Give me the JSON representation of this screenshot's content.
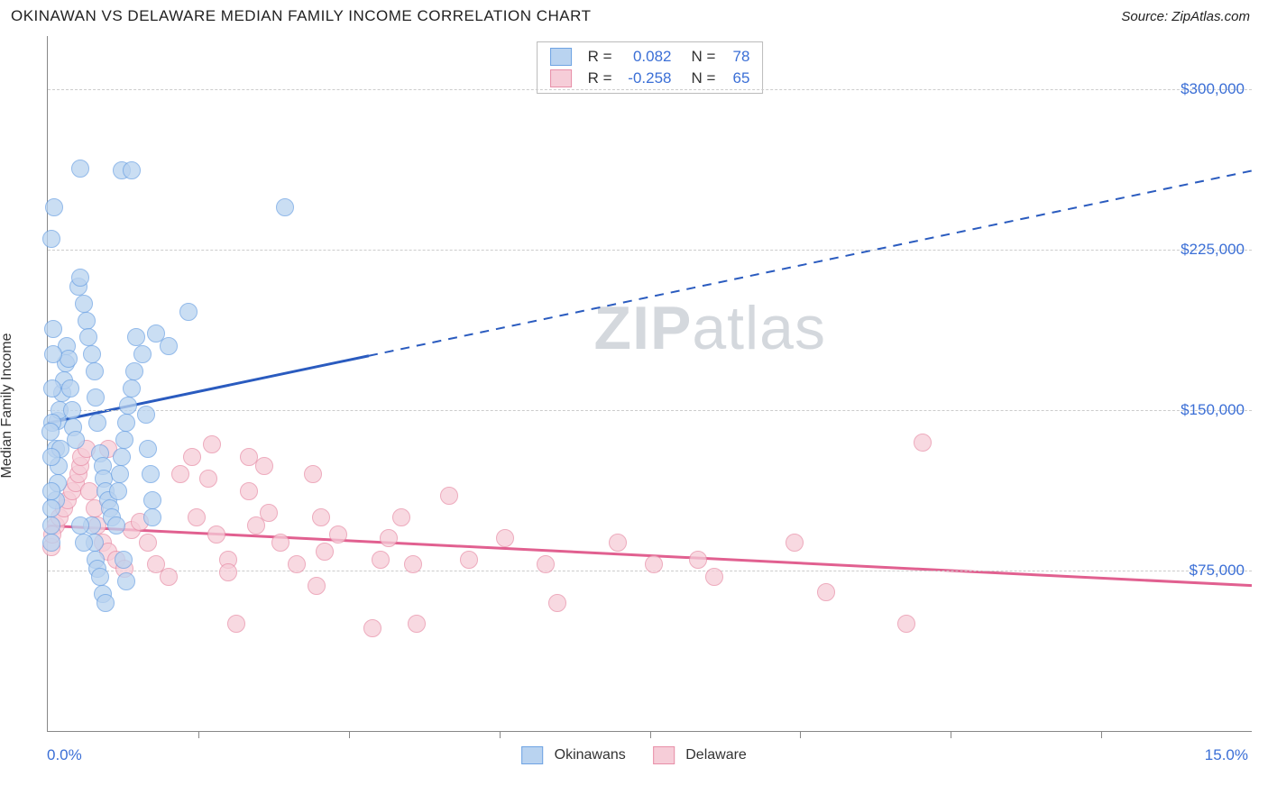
{
  "header": {
    "title": "OKINAWAN VS DELAWARE MEDIAN FAMILY INCOME CORRELATION CHART",
    "source_prefix": "Source: ",
    "source": "ZipAtlas.com"
  },
  "ylabel": "Median Family Income",
  "watermark": {
    "zip": "ZIP",
    "atlas": "atlas"
  },
  "axes": {
    "x_min_label": "0.0%",
    "x_max_label": "15.0%",
    "x_min": 0.0,
    "x_max": 15.0,
    "y_min": 0,
    "y_max": 325000,
    "y_ticks": [
      {
        "value": 75000,
        "label": "$75,000"
      },
      {
        "value": 150000,
        "label": "$150,000"
      },
      {
        "value": 225000,
        "label": "$225,000"
      },
      {
        "value": 300000,
        "label": "$300,000"
      }
    ],
    "x_tick_count": 7,
    "grid_color": "#cccccc",
    "axis_color": "#888888"
  },
  "series": {
    "a": {
      "name": "Okinawans",
      "fill": "#b9d3f0",
      "stroke": "#6ea3e3",
      "line": "#2a5bbf",
      "r_label": "R =",
      "r": "0.082",
      "n_label": "N =",
      "n": "78",
      "trend": {
        "y_at_xmin": 144000,
        "y_at_xmax": 262000,
        "solid_until_x": 4.0
      },
      "points": [
        [
          0.05,
          230000
        ],
        [
          0.08,
          245000
        ],
        [
          0.4,
          263000
        ],
        [
          0.92,
          262000
        ],
        [
          1.05,
          262000
        ],
        [
          2.95,
          245000
        ],
        [
          0.1,
          132000
        ],
        [
          0.12,
          145000
        ],
        [
          0.15,
          150000
        ],
        [
          0.18,
          158000
        ],
        [
          0.2,
          164000
        ],
        [
          0.22,
          172000
        ],
        [
          0.24,
          180000
        ],
        [
          0.26,
          174000
        ],
        [
          0.28,
          160000
        ],
        [
          0.3,
          150000
        ],
        [
          0.32,
          142000
        ],
        [
          0.35,
          136000
        ],
        [
          0.38,
          208000
        ],
        [
          0.4,
          212000
        ],
        [
          0.45,
          200000
        ],
        [
          0.48,
          192000
        ],
        [
          0.5,
          184000
        ],
        [
          0.55,
          176000
        ],
        [
          0.58,
          168000
        ],
        [
          0.6,
          156000
        ],
        [
          0.62,
          144000
        ],
        [
          0.65,
          130000
        ],
        [
          0.68,
          124000
        ],
        [
          0.7,
          118000
        ],
        [
          0.72,
          112000
        ],
        [
          0.75,
          108000
        ],
        [
          0.78,
          104000
        ],
        [
          0.8,
          100000
        ],
        [
          0.85,
          96000
        ],
        [
          0.88,
          112000
        ],
        [
          0.9,
          120000
        ],
        [
          0.92,
          128000
        ],
        [
          0.95,
          136000
        ],
        [
          0.98,
          144000
        ],
        [
          1.0,
          152000
        ],
        [
          1.05,
          160000
        ],
        [
          1.08,
          168000
        ],
        [
          1.1,
          184000
        ],
        [
          1.18,
          176000
        ],
        [
          1.22,
          148000
        ],
        [
          1.25,
          132000
        ],
        [
          1.28,
          120000
        ],
        [
          1.3,
          108000
        ],
        [
          1.3,
          100000
        ],
        [
          1.35,
          186000
        ],
        [
          1.5,
          180000
        ],
        [
          1.75,
          196000
        ],
        [
          0.55,
          96000
        ],
        [
          0.58,
          88000
        ],
        [
          0.6,
          80000
        ],
        [
          0.62,
          76000
        ],
        [
          0.65,
          72000
        ],
        [
          0.68,
          64000
        ],
        [
          0.72,
          60000
        ],
        [
          0.1,
          108000
        ],
        [
          0.12,
          116000
        ],
        [
          0.14,
          124000
        ],
        [
          0.16,
          132000
        ],
        [
          0.05,
          112000
        ],
        [
          0.05,
          128000
        ],
        [
          0.06,
          144000
        ],
        [
          0.06,
          160000
        ],
        [
          0.07,
          176000
        ],
        [
          0.07,
          188000
        ],
        [
          0.05,
          96000
        ],
        [
          0.04,
          88000
        ],
        [
          0.04,
          104000
        ],
        [
          0.03,
          140000
        ],
        [
          0.4,
          96000
        ],
        [
          0.45,
          88000
        ],
        [
          0.94,
          80000
        ],
        [
          0.98,
          70000
        ]
      ]
    },
    "b": {
      "name": "Delaware",
      "fill": "#f6cdd8",
      "stroke": "#e88fa8",
      "line": "#e16090",
      "r_label": "R =",
      "r": "-0.258",
      "n_label": "N =",
      "n": "65",
      "trend": {
        "y_at_xmin": 96000,
        "y_at_xmax": 68000,
        "solid_until_x": 15.0
      },
      "points": [
        [
          0.1,
          96000
        ],
        [
          0.15,
          100000
        ],
        [
          0.2,
          104000
        ],
        [
          0.25,
          108000
        ],
        [
          0.3,
          112000
        ],
        [
          0.35,
          116000
        ],
        [
          0.38,
          120000
        ],
        [
          0.4,
          124000
        ],
        [
          0.42,
          128000
        ],
        [
          0.48,
          132000
        ],
        [
          0.52,
          112000
        ],
        [
          0.58,
          104000
        ],
        [
          0.62,
          96000
        ],
        [
          0.68,
          88000
        ],
        [
          0.75,
          84000
        ],
        [
          0.85,
          80000
        ],
        [
          0.95,
          76000
        ],
        [
          1.05,
          94000
        ],
        [
          1.15,
          98000
        ],
        [
          1.25,
          88000
        ],
        [
          1.35,
          78000
        ],
        [
          1.5,
          72000
        ],
        [
          1.65,
          120000
        ],
        [
          1.8,
          128000
        ],
        [
          1.85,
          100000
        ],
        [
          2.0,
          118000
        ],
        [
          2.1,
          92000
        ],
        [
          2.25,
          80000
        ],
        [
          2.25,
          74000
        ],
        [
          2.35,
          50000
        ],
        [
          2.5,
          128000
        ],
        [
          2.5,
          112000
        ],
        [
          2.6,
          96000
        ],
        [
          2.7,
          124000
        ],
        [
          2.75,
          102000
        ],
        [
          2.9,
          88000
        ],
        [
          3.1,
          78000
        ],
        [
          3.3,
          120000
        ],
        [
          3.35,
          68000
        ],
        [
          3.4,
          100000
        ],
        [
          3.45,
          84000
        ],
        [
          3.62,
          92000
        ],
        [
          4.05,
          48000
        ],
        [
          4.15,
          80000
        ],
        [
          4.25,
          90000
        ],
        [
          4.4,
          100000
        ],
        [
          4.55,
          78000
        ],
        [
          4.6,
          50000
        ],
        [
          5.0,
          110000
        ],
        [
          5.25,
          80000
        ],
        [
          5.7,
          90000
        ],
        [
          6.2,
          78000
        ],
        [
          6.35,
          60000
        ],
        [
          7.1,
          88000
        ],
        [
          7.55,
          78000
        ],
        [
          8.1,
          80000
        ],
        [
          8.3,
          72000
        ],
        [
          9.3,
          88000
        ],
        [
          9.7,
          65000
        ],
        [
          10.9,
          135000
        ],
        [
          10.7,
          50000
        ],
        [
          0.05,
          86000
        ],
        [
          0.06,
          92000
        ],
        [
          0.75,
          132000
        ],
        [
          2.05,
          134000
        ]
      ]
    }
  }
}
